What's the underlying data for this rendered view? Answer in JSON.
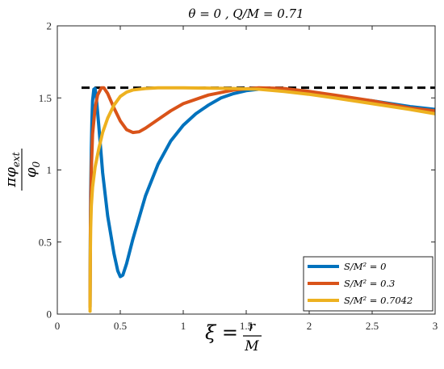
{
  "chart_data": {
    "type": "line",
    "title": "θ = 0 ,    Q/M = 0.71",
    "xlabel": {
      "prefix": "ξ = ",
      "num": "r",
      "den": "M"
    },
    "ylabel": {
      "num": "πφ",
      "num_sub": "ext",
      "den": "φ",
      "den_sub": "0"
    },
    "xlim": [
      0,
      3
    ],
    "ylim": [
      0,
      2
    ],
    "xticks": [
      0,
      0.5,
      1,
      1.5,
      2,
      2.5,
      3
    ],
    "xtick_labels": [
      "0",
      "0.5",
      "1",
      "1.5",
      "2",
      "2.5",
      "3"
    ],
    "yticks": [
      0,
      0.5,
      1,
      1.5,
      2
    ],
    "ytick_labels": [
      "0",
      "0.5",
      "1",
      "1.5",
      "2"
    ],
    "grid": false,
    "legend_position": "bottom-right",
    "reference_line": {
      "y": 1.5708,
      "style": "dashed",
      "color": "#000000"
    },
    "series": [
      {
        "name": "S/M² = 0",
        "color": "#0072BD",
        "points": [
          [
            0.26,
            0.05
          ],
          [
            0.262,
            0.5
          ],
          [
            0.265,
            0.85
          ],
          [
            0.27,
            1.15
          ],
          [
            0.275,
            1.35
          ],
          [
            0.28,
            1.48
          ],
          [
            0.29,
            1.56
          ],
          [
            0.3,
            1.565
          ],
          [
            0.31,
            1.5
          ],
          [
            0.33,
            1.3
          ],
          [
            0.36,
            0.98
          ],
          [
            0.4,
            0.68
          ],
          [
            0.45,
            0.42
          ],
          [
            0.48,
            0.3
          ],
          [
            0.5,
            0.26
          ],
          [
            0.52,
            0.27
          ],
          [
            0.55,
            0.35
          ],
          [
            0.6,
            0.52
          ],
          [
            0.7,
            0.82
          ],
          [
            0.8,
            1.04
          ],
          [
            0.9,
            1.2
          ],
          [
            1.0,
            1.31
          ],
          [
            1.1,
            1.39
          ],
          [
            1.2,
            1.45
          ],
          [
            1.3,
            1.5
          ],
          [
            1.4,
            1.53
          ],
          [
            1.5,
            1.55
          ],
          [
            1.6,
            1.56
          ],
          [
            1.7,
            1.56
          ],
          [
            1.8,
            1.555
          ],
          [
            2.0,
            1.535
          ],
          [
            2.2,
            1.51
          ],
          [
            2.5,
            1.48
          ],
          [
            2.8,
            1.44
          ],
          [
            3.0,
            1.42
          ]
        ]
      },
      {
        "name": "S/M² = 0.3",
        "color": "#D95319",
        "points": [
          [
            0.26,
            0.05
          ],
          [
            0.263,
            0.6
          ],
          [
            0.27,
            1.0
          ],
          [
            0.28,
            1.25
          ],
          [
            0.3,
            1.43
          ],
          [
            0.32,
            1.52
          ],
          [
            0.35,
            1.57
          ],
          [
            0.37,
            1.57
          ],
          [
            0.4,
            1.53
          ],
          [
            0.45,
            1.43
          ],
          [
            0.5,
            1.34
          ],
          [
            0.55,
            1.28
          ],
          [
            0.6,
            1.26
          ],
          [
            0.65,
            1.265
          ],
          [
            0.7,
            1.29
          ],
          [
            0.8,
            1.35
          ],
          [
            0.9,
            1.41
          ],
          [
            1.0,
            1.46
          ],
          [
            1.2,
            1.52
          ],
          [
            1.4,
            1.555
          ],
          [
            1.6,
            1.57
          ],
          [
            1.8,
            1.565
          ],
          [
            2.0,
            1.545
          ],
          [
            2.2,
            1.52
          ],
          [
            2.5,
            1.48
          ],
          [
            2.8,
            1.43
          ],
          [
            3.0,
            1.41
          ]
        ]
      },
      {
        "name": "S/M² = 0.7042",
        "color": "#EDB120",
        "points": [
          [
            0.26,
            0.02
          ],
          [
            0.262,
            0.4
          ],
          [
            0.265,
            0.6
          ],
          [
            0.27,
            0.75
          ],
          [
            0.28,
            0.88
          ],
          [
            0.3,
            1.02
          ],
          [
            0.33,
            1.15
          ],
          [
            0.36,
            1.26
          ],
          [
            0.4,
            1.36
          ],
          [
            0.45,
            1.45
          ],
          [
            0.5,
            1.51
          ],
          [
            0.55,
            1.54
          ],
          [
            0.6,
            1.555
          ],
          [
            0.7,
            1.565
          ],
          [
            0.8,
            1.57
          ],
          [
            1.0,
            1.57
          ],
          [
            1.2,
            1.568
          ],
          [
            1.4,
            1.565
          ],
          [
            1.6,
            1.56
          ],
          [
            1.8,
            1.545
          ],
          [
            2.0,
            1.525
          ],
          [
            2.2,
            1.5
          ],
          [
            2.5,
            1.46
          ],
          [
            2.8,
            1.42
          ],
          [
            3.0,
            1.39
          ]
        ]
      }
    ]
  }
}
